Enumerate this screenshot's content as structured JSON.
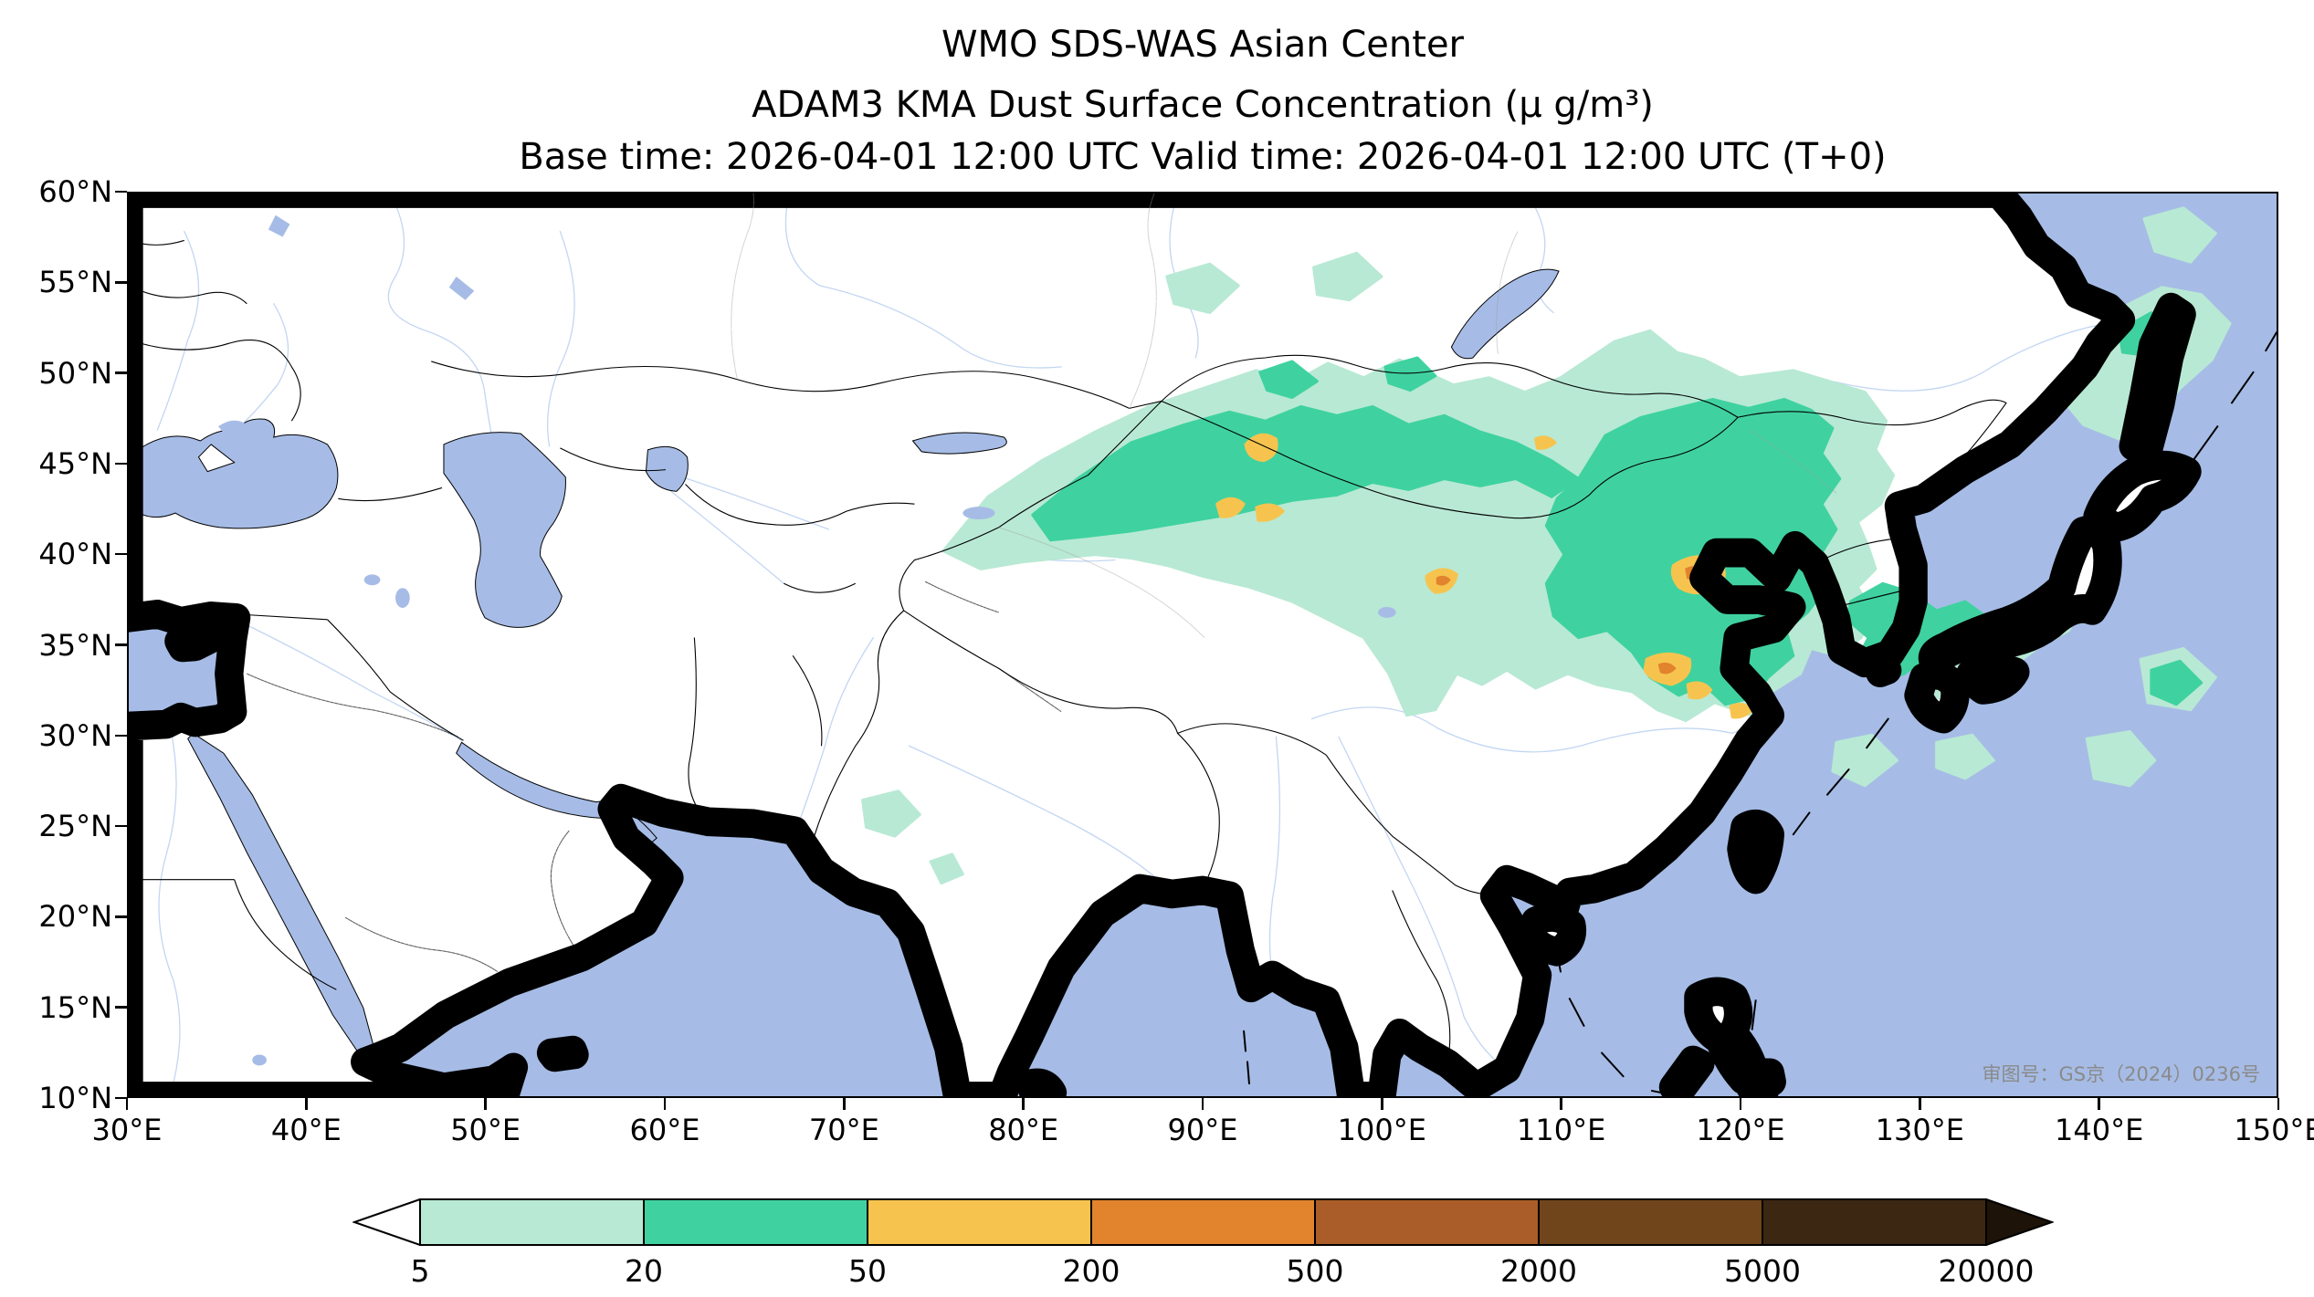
{
  "header": {
    "title_line1": "WMO SDS-WAS Asian Center",
    "title_line2": "ADAM3 KMA Dust Surface Concentration (μ g/m³)",
    "title_line3": "Base time: 2026-04-01 12:00 UTC Valid time: 2026-04-01 12:00 UTC (T+0)"
  },
  "map": {
    "lat_ticks": [
      "60°N",
      "55°N",
      "50°N",
      "45°N",
      "40°N",
      "35°N",
      "30°N",
      "25°N",
      "20°N",
      "15°N",
      "10°N"
    ],
    "lon_ticks": [
      "30°E",
      "40°E",
      "50°E",
      "60°E",
      "70°E",
      "80°E",
      "90°E",
      "100°E",
      "110°E",
      "120°E",
      "130°E",
      "140°E",
      "150°E"
    ],
    "license_text": "审图号：GS京（2024）0236号",
    "ocean_color": "#a6bce6",
    "land_color": "#ffffff",
    "river_color": "#c3d6f2"
  },
  "colorbar": {
    "levels": [
      "5",
      "20",
      "50",
      "200",
      "500",
      "2000",
      "5000",
      "20000"
    ],
    "colors": [
      "#b8e9d4",
      "#3fd2a0",
      "#f6c44e",
      "#e2832e",
      "#aa5d28",
      "#70451c",
      "#3c2712"
    ],
    "under_color": "#ffffff",
    "over_color": "#1e1308"
  },
  "chart_data": {
    "type": "heatmap",
    "title": "ADAM3 KMA Dust Surface Concentration (μ g/m³)",
    "unit": "μg/m³",
    "lon_range": [
      30,
      150
    ],
    "lat_range": [
      10,
      60
    ],
    "contour_levels": [
      5,
      20,
      50,
      200,
      500,
      2000,
      5000,
      20000
    ],
    "legend_position": "bottom",
    "notes": "Filled contours: 5-20 μg/m³ (pale cyan) broadly over the Tarim Basin, Mongolia, northern and eastern China, Korea, Japan, Sakhalin/Okhotsk and NW Pacific patches; 20-50 μg/m³ (green) band over southern Mongolia / Inner Mongolia (≈80-112°E, 40-47°N) and NE China to the Yellow Sea; 50-200 μg/m³ (yellow) spots near 93°E 46°N, 91-95°E 42-43°N, 103°E 38.5°N, 117-120°E 38-39°N, 115-118°E 33-34°N and 120°E 31.5°N."
  }
}
